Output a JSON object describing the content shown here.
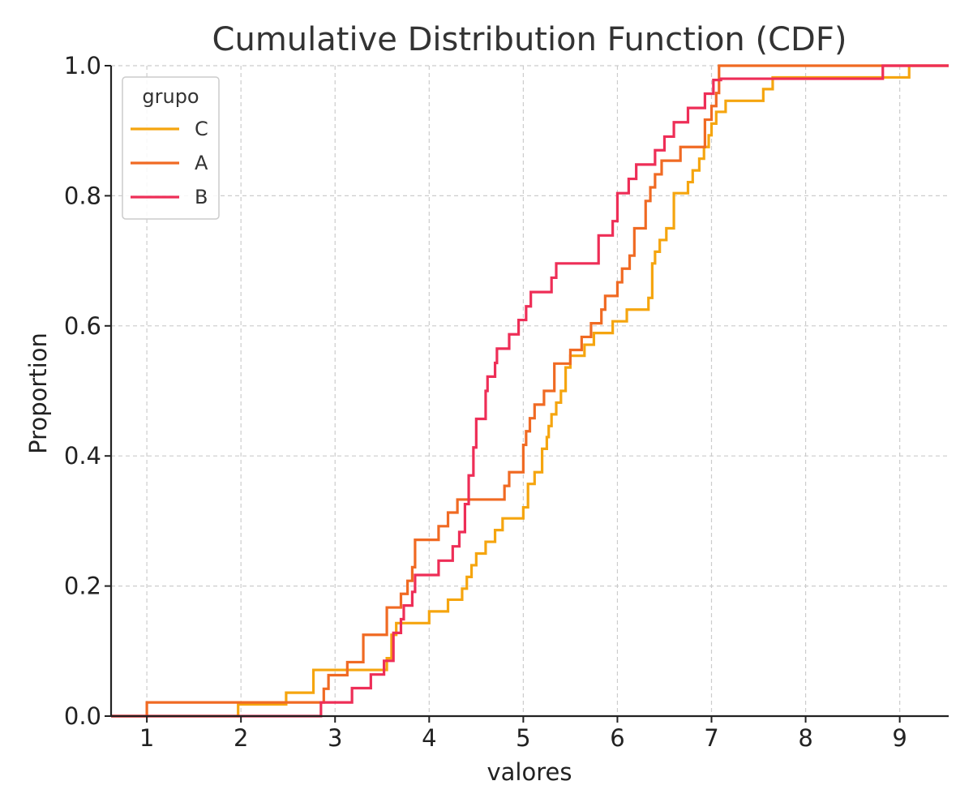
{
  "chart_data": {
    "type": "line",
    "subtype": "ecdf-step",
    "title": "Cumulative Distribution Function (CDF)",
    "xlabel": "valores",
    "ylabel": "Proportion",
    "xlim": [
      0.62,
      9.52
    ],
    "ylim": [
      0,
      1
    ],
    "xticks": [
      1,
      2,
      3,
      4,
      5,
      6,
      7,
      8,
      9
    ],
    "yticks": [
      0.0,
      0.2,
      0.4,
      0.6,
      0.8,
      1.0
    ],
    "ytick_labels": [
      "0.0",
      "0.2",
      "0.4",
      "0.6",
      "0.8",
      "1.0"
    ],
    "grid": true,
    "legend": {
      "title": "grupo",
      "placement": "top-left"
    },
    "series": [
      {
        "name": "C",
        "color": "#f5a50f",
        "x": [
          1.97,
          2.48,
          2.77,
          3.55,
          3.6,
          3.65,
          4.0,
          4.2,
          4.35,
          4.4,
          4.45,
          4.5,
          4.6,
          4.7,
          4.78,
          5.0,
          5.05,
          5.12,
          5.2,
          5.25,
          5.27,
          5.3,
          5.35,
          5.4,
          5.45,
          5.5,
          5.65,
          5.75,
          5.95,
          6.1,
          6.33,
          6.37,
          6.4,
          6.45,
          6.52,
          6.6,
          6.6,
          6.75,
          6.8,
          6.87,
          6.92,
          6.97,
          7.0,
          7.05,
          7.15,
          7.55,
          7.65,
          9.1
        ],
        "y": [
          0.018,
          0.036,
          0.071,
          0.089,
          0.125,
          0.143,
          0.161,
          0.179,
          0.196,
          0.214,
          0.232,
          0.25,
          0.268,
          0.286,
          0.304,
          0.321,
          0.357,
          0.375,
          0.411,
          0.429,
          0.446,
          0.464,
          0.482,
          0.5,
          0.536,
          0.554,
          0.571,
          0.589,
          0.607,
          0.625,
          0.643,
          0.696,
          0.714,
          0.732,
          0.75,
          0.768,
          0.804,
          0.821,
          0.839,
          0.857,
          0.875,
          0.893,
          0.911,
          0.929,
          0.946,
          0.964,
          0.982,
          1.0
        ]
      },
      {
        "name": "A",
        "color": "#f06a23",
        "x": [
          1.0,
          2.88,
          2.93,
          3.13,
          3.3,
          3.55,
          3.7,
          3.77,
          3.82,
          3.85,
          4.1,
          4.2,
          4.3,
          4.8,
          4.85,
          5.0,
          5.03,
          5.07,
          5.12,
          5.22,
          5.33,
          5.5,
          5.62,
          5.72,
          5.83,
          5.87,
          6.0,
          6.05,
          6.13,
          6.18,
          6.3,
          6.35,
          6.4,
          6.47,
          6.67,
          6.93,
          7.0,
          7.05,
          7.08
        ],
        "y": [
          0.021,
          0.042,
          0.063,
          0.083,
          0.125,
          0.167,
          0.188,
          0.208,
          0.229,
          0.271,
          0.292,
          0.313,
          0.333,
          0.354,
          0.375,
          0.417,
          0.438,
          0.458,
          0.479,
          0.5,
          0.542,
          0.563,
          0.583,
          0.604,
          0.625,
          0.646,
          0.667,
          0.688,
          0.708,
          0.75,
          0.792,
          0.813,
          0.833,
          0.854,
          0.875,
          0.917,
          0.938,
          0.958,
          1.0
        ]
      },
      {
        "name": "B",
        "color": "#ee2e57",
        "x": [
          2.85,
          3.18,
          3.38,
          3.52,
          3.62,
          3.7,
          3.73,
          3.82,
          3.85,
          4.1,
          4.25,
          4.32,
          4.38,
          4.42,
          4.47,
          4.5,
          4.6,
          4.62,
          4.7,
          4.72,
          4.85,
          4.95,
          5.03,
          5.08,
          5.3,
          5.35,
          5.8,
          5.95,
          6.0,
          6.12,
          6.2,
          6.4,
          6.5,
          6.6,
          6.75,
          6.93,
          7.02,
          7.1,
          8.82
        ],
        "y": [
          0.021,
          0.043,
          0.064,
          0.085,
          0.128,
          0.149,
          0.17,
          0.191,
          0.217,
          0.239,
          0.261,
          0.283,
          0.326,
          0.37,
          0.413,
          0.457,
          0.5,
          0.522,
          0.543,
          0.565,
          0.587,
          0.609,
          0.63,
          0.652,
          0.674,
          0.696,
          0.739,
          0.761,
          0.804,
          0.826,
          0.848,
          0.87,
          0.891,
          0.913,
          0.935,
          0.957,
          0.978,
          0.98,
          1.0
        ]
      }
    ]
  }
}
